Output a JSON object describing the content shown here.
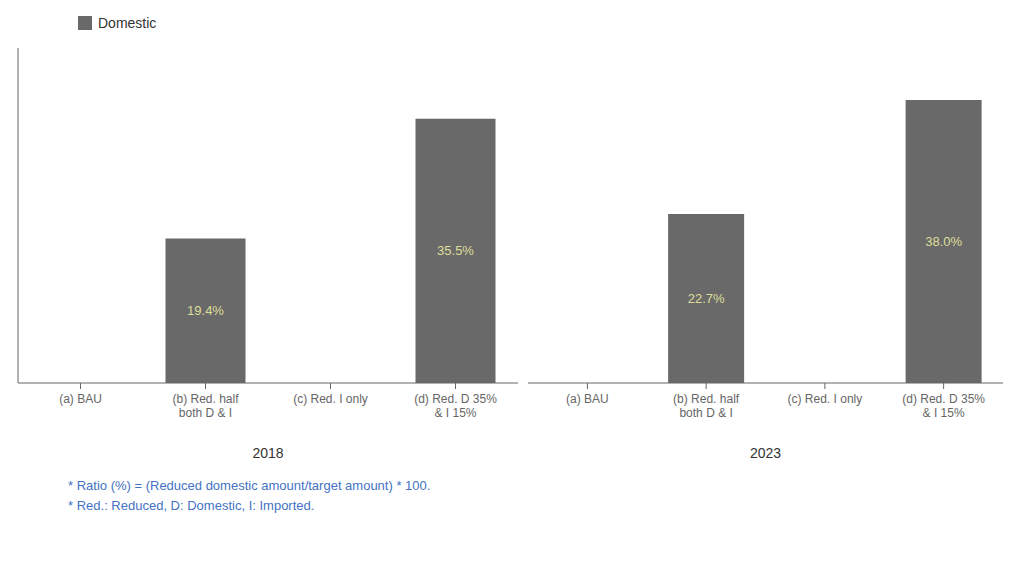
{
  "chart_data": {
    "type": "bar",
    "legend": "upper left",
    "series": [
      {
        "name": "Domestic",
        "color": "#696969"
      }
    ],
    "groups": [
      {
        "label": "2018",
        "categories": [
          "(a) BAU",
          "(b) Red. half\nboth D & I",
          "(c) Red. I only",
          "(d) Red. D 35%\n& I 15%"
        ],
        "values": [
          0,
          19.4,
          0,
          35.5
        ],
        "value_labels": [
          null,
          "19.4%",
          null,
          "35.5%"
        ]
      },
      {
        "label": "2023",
        "categories": [
          "(a) BAU",
          "(b) Red. half\nboth D & I",
          "(c) Red. I only",
          "(d) Red. D 35%\n& I 15%"
        ],
        "values": [
          0,
          22.7,
          0,
          38.0
        ],
        "value_labels": [
          null,
          "22.7%",
          null,
          "38.0%"
        ]
      }
    ],
    "ylim": [
      0,
      45
    ],
    "yticks": [],
    "tick_labels": "x",
    "grid": false,
    "data_labels": true,
    "label_color": "#dede9a",
    "footnotes": [
      "* Ratio (%) = (Reduced domestic amount/target amount) * 100.",
      "* Red.: Reduced, D: Domestic, I: Imported."
    ],
    "footnote_color": "#4472c4"
  }
}
